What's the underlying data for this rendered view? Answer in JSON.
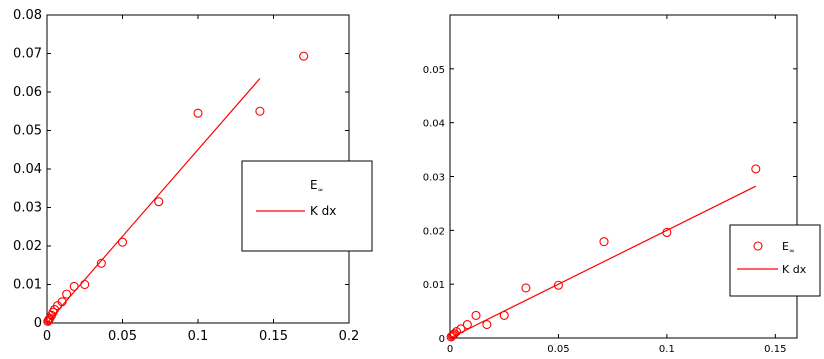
{
  "colors": {
    "series": "#ff0000",
    "axis": "#000000",
    "background": "#ffffff"
  },
  "chart_data": [
    {
      "type": "scatter",
      "title": "",
      "xlabel": "",
      "ylabel": "",
      "xlim": [
        0,
        0.2
      ],
      "ylim": [
        0,
        0.08
      ],
      "grid": false,
      "legend_placement": "center-right",
      "x_ticks": [
        "0",
        "0.05",
        "0.1",
        "0.15",
        "0.2"
      ],
      "y_ticks": [
        "0",
        "0.01",
        "0.02",
        "0.03",
        "0.04",
        "0.05",
        "0.06",
        "0.07",
        "0.08"
      ],
      "series": [
        {
          "name": "E",
          "name_subscript": "∞",
          "marker": "circle",
          "x": [
            0.0005,
            0.001,
            0.0015,
            0.002,
            0.003,
            0.004,
            0.005,
            0.007,
            0.01,
            0.013,
            0.018,
            0.025,
            0.036,
            0.05,
            0.074,
            0.1,
            0.141,
            0.17
          ],
          "y": [
            0.0004,
            0.0007,
            0.001,
            0.0013,
            0.002,
            0.0028,
            0.0035,
            0.0045,
            0.0055,
            0.0075,
            0.0095,
            0.01,
            0.0155,
            0.021,
            0.0315,
            0.0545,
            0.055,
            0.0693
          ]
        },
        {
          "name": "K dx",
          "marker": "line",
          "x": [
            0,
            0.141
          ],
          "y": [
            0,
            0.0635
          ]
        }
      ]
    },
    {
      "type": "scatter",
      "title": "",
      "xlabel": "",
      "ylabel": "",
      "xlim": [
        0,
        0.16
      ],
      "ylim": [
        0,
        0.06
      ],
      "grid": false,
      "legend_placement": "right",
      "x_ticks": [
        "0",
        "0.05",
        "0.1",
        "0.15"
      ],
      "y_ticks": [
        "0",
        "0.01",
        "0.02",
        "0.03",
        "0.04",
        "0.05"
      ],
      "series": [
        {
          "name": "E",
          "name_subscript": "∞",
          "marker": "circle",
          "x": [
            0.0005,
            0.001,
            0.0015,
            0.002,
            0.003,
            0.005,
            0.008,
            0.012,
            0.017,
            0.025,
            0.035,
            0.05,
            0.071,
            0.1,
            0.141
          ],
          "y": [
            0.0002,
            0.0004,
            0.0006,
            0.0008,
            0.0012,
            0.0017,
            0.0025,
            0.0042,
            0.0025,
            0.0042,
            0.0093,
            0.0098,
            0.0179,
            0.0196,
            0.0314
          ]
        },
        {
          "name": "K dx",
          "marker": "line",
          "x": [
            0,
            0.141
          ],
          "y": [
            0,
            0.0282
          ]
        }
      ]
    }
  ]
}
